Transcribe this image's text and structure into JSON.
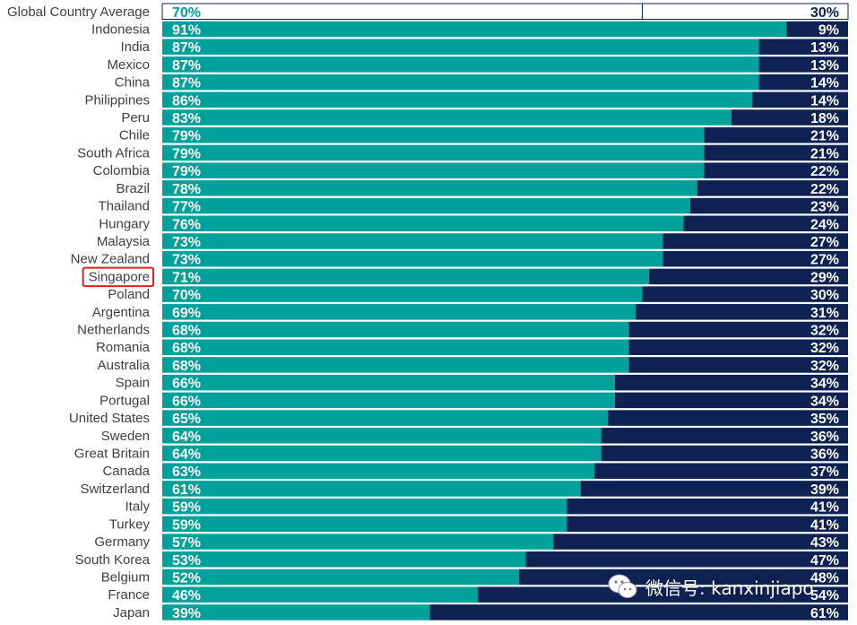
{
  "chart_data": {
    "type": "bar",
    "orientation": "horizontal",
    "stacked": true,
    "percent_scale": true,
    "title": "",
    "xlabel": "",
    "ylabel": "",
    "xlim": [
      0,
      100
    ],
    "grid": false,
    "legend": "none",
    "highlight": "Singapore",
    "categories": [
      "Global Country Average",
      "Indonesia",
      "India",
      "Mexico",
      "China",
      "Philippines",
      "Peru",
      "Chile",
      "South Africa",
      "Colombia",
      "Brazil",
      "Thailand",
      "Hungary",
      "Malaysia",
      "New Zealand",
      "Singapore",
      "Poland",
      "Argentina",
      "Netherlands",
      "Romania",
      "Australia",
      "Spain",
      "Portugal",
      "United States",
      "Sweden",
      "Great Britain",
      "Canada",
      "Switzerland",
      "Italy",
      "Turkey",
      "Germany",
      "South Korea",
      "Belgium",
      "France",
      "Japan"
    ],
    "series": [
      {
        "values": [
          70,
          91,
          87,
          87,
          87,
          86,
          83,
          79,
          79,
          79,
          78,
          77,
          76,
          73,
          73,
          71,
          70,
          69,
          68,
          68,
          68,
          66,
          66,
          65,
          64,
          64,
          63,
          61,
          59,
          59,
          57,
          53,
          52,
          46,
          39
        ],
        "labels": [
          "70%",
          "91%",
          "87%",
          "87%",
          "87%",
          "86%",
          "83%",
          "79%",
          "79%",
          "79%",
          "78%",
          "77%",
          "76%",
          "73%",
          "73%",
          "71%",
          "70%",
          "69%",
          "68%",
          "68%",
          "68%",
          "66%",
          "66%",
          "65%",
          "64%",
          "64%",
          "63%",
          "61%",
          "59%",
          "59%",
          "57%",
          "53%",
          "52%",
          "46%",
          "39%"
        ],
        "color": "#00A19A"
      },
      {
        "values": [
          30,
          9,
          13,
          13,
          14,
          14,
          18,
          21,
          21,
          22,
          22,
          23,
          24,
          27,
          27,
          29,
          30,
          31,
          32,
          32,
          32,
          34,
          34,
          35,
          36,
          36,
          37,
          39,
          41,
          41,
          43,
          47,
          48,
          54,
          61
        ],
        "labels": [
          "30%",
          "9%",
          "13%",
          "13%",
          "14%",
          "14%",
          "18%",
          "21%",
          "21%",
          "22%",
          "22%",
          "23%",
          "24%",
          "27%",
          "27%",
          "29%",
          "30%",
          "31%",
          "32%",
          "32%",
          "32%",
          "34%",
          "34%",
          "35%",
          "36%",
          "36%",
          "37%",
          "39%",
          "41%",
          "41%",
          "43%",
          "47%",
          "48%",
          "54%",
          "61%"
        ],
        "color": "#0D2252"
      }
    ]
  },
  "colors": {
    "teal": "#00A19A",
    "navy": "#0D2252",
    "label": "#404040",
    "highlight_box": "#E0201B"
  },
  "watermark": {
    "text": "微信号: kanxinjiapo",
    "icon": "wechat-icon"
  }
}
